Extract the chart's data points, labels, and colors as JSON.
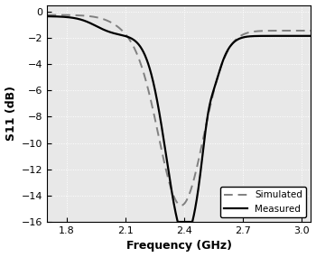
{
  "xlabel": "Frequency (GHz)",
  "ylabel": "S11 (dB)",
  "xlim": [
    1.7,
    3.05
  ],
  "ylim": [
    -16,
    0.5
  ],
  "xticks": [
    1.8,
    2.1,
    2.4,
    2.7,
    3.0
  ],
  "yticks": [
    0,
    -2,
    -4,
    -6,
    -8,
    -10,
    -12,
    -14,
    -16
  ],
  "fig_bg_color": "#ffffff",
  "plot_bg_color": "#e8e8e8",
  "legend_labels": [
    "Simulated",
    "Measured"
  ],
  "legend_loc": "lower right",
  "sim_color": "#808080",
  "meas_color": "#000000",
  "grid_color": "#ffffff",
  "freq_start": 1.7,
  "freq_end": 3.05,
  "freq_points": 1000
}
